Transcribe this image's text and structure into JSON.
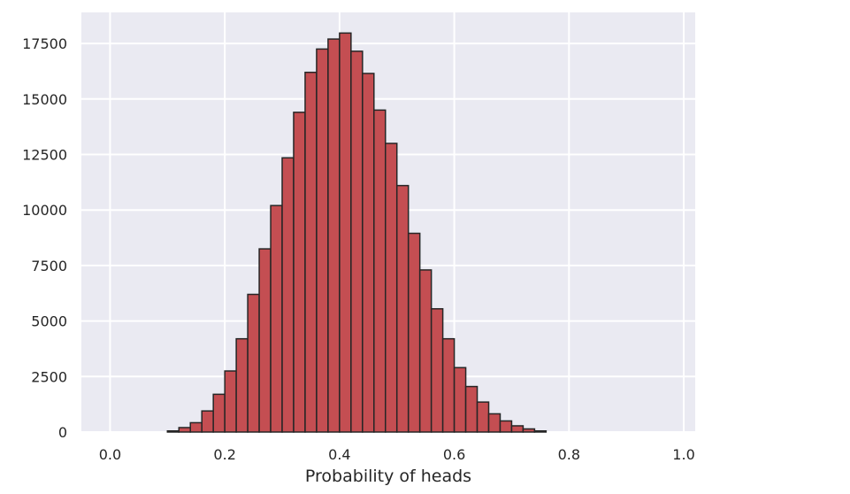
{
  "chart_data": {
    "type": "bar",
    "subtype": "histogram",
    "xlabel": "Probability of heads",
    "ylabel": "",
    "title": "",
    "xlim": [
      -0.05,
      1.02
    ],
    "ylim": [
      0,
      18900
    ],
    "xticks": [
      0.0,
      0.2,
      0.4,
      0.6,
      0.8,
      1.0
    ],
    "xtick_labels": [
      "0.0",
      "0.2",
      "0.4",
      "0.6",
      "0.8",
      "1.0"
    ],
    "yticks": [
      0,
      2500,
      5000,
      7500,
      10000,
      12500,
      15000,
      17500
    ],
    "ytick_labels": [
      "0",
      "2500",
      "5000",
      "7500",
      "10000",
      "12500",
      "15000",
      "17500"
    ],
    "grid": true,
    "background_color": "#eaeaf2",
    "bar_color": "#c44e52",
    "edge_color": "#262626",
    "bins": [
      {
        "x0": 0.1,
        "x1": 0.12,
        "count": 50
      },
      {
        "x0": 0.12,
        "x1": 0.14,
        "count": 200
      },
      {
        "x0": 0.14,
        "x1": 0.16,
        "count": 420
      },
      {
        "x0": 0.16,
        "x1": 0.18,
        "count": 950
      },
      {
        "x0": 0.18,
        "x1": 0.2,
        "count": 1700
      },
      {
        "x0": 0.2,
        "x1": 0.22,
        "count": 2750
      },
      {
        "x0": 0.22,
        "x1": 0.24,
        "count": 4200
      },
      {
        "x0": 0.24,
        "x1": 0.26,
        "count": 6200
      },
      {
        "x0": 0.26,
        "x1": 0.28,
        "count": 8250
      },
      {
        "x0": 0.28,
        "x1": 0.3,
        "count": 10200
      },
      {
        "x0": 0.3,
        "x1": 0.32,
        "count": 12350
      },
      {
        "x0": 0.32,
        "x1": 0.34,
        "count": 14400
      },
      {
        "x0": 0.34,
        "x1": 0.36,
        "count": 16200
      },
      {
        "x0": 0.36,
        "x1": 0.38,
        "count": 17250
      },
      {
        "x0": 0.38,
        "x1": 0.4,
        "count": 17700
      },
      {
        "x0": 0.4,
        "x1": 0.42,
        "count": 17970
      },
      {
        "x0": 0.42,
        "x1": 0.44,
        "count": 17150
      },
      {
        "x0": 0.44,
        "x1": 0.46,
        "count": 16150
      },
      {
        "x0": 0.46,
        "x1": 0.48,
        "count": 14500
      },
      {
        "x0": 0.48,
        "x1": 0.5,
        "count": 13000
      },
      {
        "x0": 0.5,
        "x1": 0.52,
        "count": 11100
      },
      {
        "x0": 0.52,
        "x1": 0.54,
        "count": 8950
      },
      {
        "x0": 0.54,
        "x1": 0.56,
        "count": 7300
      },
      {
        "x0": 0.56,
        "x1": 0.58,
        "count": 5550
      },
      {
        "x0": 0.58,
        "x1": 0.6,
        "count": 4200
      },
      {
        "x0": 0.6,
        "x1": 0.62,
        "count": 2900
      },
      {
        "x0": 0.62,
        "x1": 0.64,
        "count": 2050
      },
      {
        "x0": 0.64,
        "x1": 0.66,
        "count": 1350
      },
      {
        "x0": 0.66,
        "x1": 0.68,
        "count": 820
      },
      {
        "x0": 0.68,
        "x1": 0.7,
        "count": 500
      },
      {
        "x0": 0.7,
        "x1": 0.72,
        "count": 280
      },
      {
        "x0": 0.72,
        "x1": 0.74,
        "count": 140
      },
      {
        "x0": 0.74,
        "x1": 0.76,
        "count": 50
      }
    ]
  }
}
